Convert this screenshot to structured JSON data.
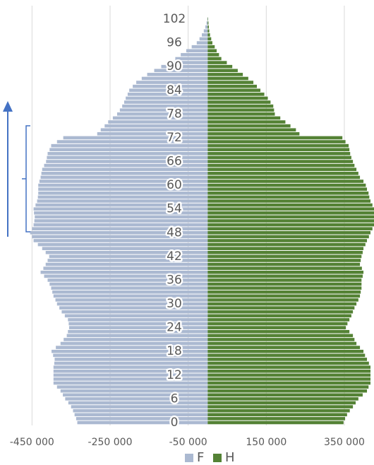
{
  "chart_data": {
    "type": "bar",
    "orientation": "horizontal",
    "stacked": true,
    "categories": [
      "0",
      null,
      null,
      null,
      null,
      null,
      "6",
      null,
      null,
      null,
      null,
      null,
      "12",
      null,
      null,
      null,
      null,
      null,
      "18",
      null,
      null,
      null,
      null,
      null,
      "24",
      null,
      null,
      null,
      null,
      null,
      "30",
      null,
      null,
      null,
      null,
      null,
      "36",
      null,
      null,
      null,
      null,
      null,
      "42",
      null,
      null,
      null,
      null,
      null,
      "48",
      null,
      null,
      null,
      null,
      null,
      "54",
      null,
      null,
      null,
      null,
      null,
      "60",
      null,
      null,
      null,
      null,
      null,
      "66",
      null,
      null,
      null,
      null,
      null,
      "72",
      null,
      null,
      null,
      null,
      null,
      "78",
      null,
      null,
      null,
      null,
      null,
      "84",
      null,
      null,
      null,
      null,
      null,
      "90",
      null,
      null,
      null,
      null,
      null,
      "96",
      null,
      null,
      null,
      null,
      null,
      "102"
    ],
    "series": [
      {
        "name": "F",
        "color": "#abb9d1",
        "values": [
          -334000,
          -337000,
          -341000,
          -345000,
          -350000,
          -357000,
          -365000,
          -371000,
          -377000,
          -386000,
          -395000,
          -395000,
          -395000,
          -395000,
          -395000,
          -393000,
          -392000,
          -396000,
          -400000,
          -389000,
          -377000,
          -369000,
          -361000,
          -358000,
          -355000,
          -356000,
          -358000,
          -366000,
          -374000,
          -380000,
          -386000,
          -390000,
          -395000,
          -398000,
          -401000,
          -405000,
          -410000,
          -419000,
          -428000,
          -421000,
          -415000,
          -410000,
          -406000,
          -415000,
          -424000,
          -435000,
          -446000,
          -450000,
          -455000,
          -450000,
          -446000,
          -444000,
          -443000,
          -445000,
          -446000,
          -441000,
          -437000,
          -435000,
          -434000,
          -434000,
          -434000,
          -431000,
          -428000,
          -426000,
          -424000,
          -419000,
          -414000,
          -412000,
          -410000,
          -405000,
          -401000,
          -386000,
          -370000,
          -283000,
          -274000,
          -264000,
          -255000,
          -243000,
          -232000,
          -225000,
          -219000,
          -214000,
          -210000,
          -205000,
          -201000,
          -192000,
          -183000,
          -169000,
          -155000,
          -137000,
          -119000,
          -101000,
          -83000,
          -69000,
          -55000,
          -41000,
          -28000,
          -21000,
          -15000,
          -10000,
          -6000,
          -3000,
          -1000
        ]
      },
      {
        "name": "H",
        "color": "#548235",
        "values": [
          348000,
          352000,
          357000,
          364000,
          372000,
          379000,
          386000,
          397000,
          408000,
          412000,
          417000,
          417000,
          417000,
          417000,
          417000,
          413000,
          408000,
          403000,
          399000,
          390000,
          381000,
          376000,
          372000,
          363000,
          354000,
          358000,
          363000,
          368000,
          372000,
          376000,
          381000,
          386000,
          390000,
          392000,
          394000,
          394000,
          394000,
          397000,
          399000,
          395000,
          390000,
          392000,
          394000,
          397000,
          399000,
          404000,
          408000,
          413000,
          417000,
          422000,
          426000,
          426000,
          426000,
          426000,
          426000,
          422000,
          417000,
          414000,
          412000,
          408000,
          405000,
          399000,
          390000,
          386000,
          381000,
          376000,
          372000,
          368000,
          365000,
          363000,
          361000,
          353000,
          345000,
          235000,
          226000,
          212000,
          199000,
          186000,
          172000,
          170000,
          168000,
          161000,
          154000,
          145000,
          135000,
          126000,
          117000,
          104000,
          90000,
          77000,
          63000,
          49000,
          35000,
          29000,
          23000,
          18000,
          12000,
          9000,
          6000,
          4000,
          3000,
          2000,
          1000
        ]
      }
    ],
    "xlim": [
      -532000,
      426000
    ],
    "xticks": [
      {
        "value": -450000,
        "label": "-450 000"
      },
      {
        "value": -250000,
        "label": "-250 000"
      },
      {
        "value": -50000,
        "label": "-50 000"
      },
      {
        "value": 150000,
        "label": "150 000"
      },
      {
        "value": 350000,
        "label": "350 000"
      }
    ],
    "grid": true,
    "legend": "bottom"
  }
}
